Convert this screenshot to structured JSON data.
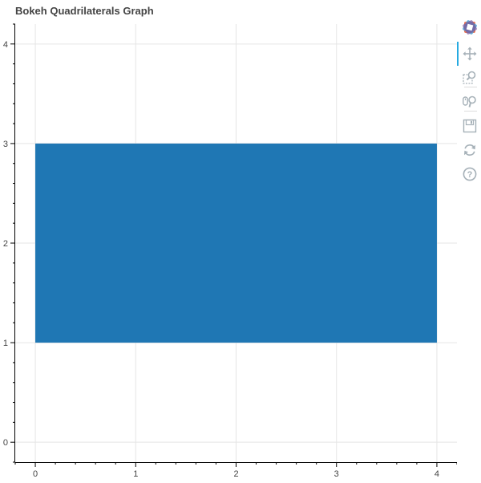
{
  "title": "Bokeh Quadrilaterals Graph",
  "colors": {
    "quad_fill": "#1f77b4",
    "grid": "#e5e5e5",
    "axis": "#000000",
    "tick_label": "#444444",
    "toolbar_icon": "#a6b1b8"
  },
  "toolbar": {
    "logo_icon": "bokeh-logo-icon",
    "tools": [
      {
        "name": "pan-tool",
        "icon": "pan-icon",
        "active": true
      },
      {
        "name": "box-zoom-tool",
        "icon": "box-zoom-icon",
        "active": false
      },
      {
        "name": "wheel-zoom-tool",
        "icon": "wheel-zoom-icon",
        "active": false
      },
      {
        "name": "save-tool",
        "icon": "save-icon",
        "active": false
      },
      {
        "name": "reset-tool",
        "icon": "reset-icon",
        "active": false
      },
      {
        "name": "help-tool",
        "icon": "help-icon",
        "active": false
      }
    ]
  },
  "chart_data": {
    "type": "quad",
    "title": "Bokeh Quadrilaterals Graph",
    "quads": [
      {
        "left": 0,
        "right": 4,
        "bottom": 1,
        "top": 3,
        "color": "#1f77b4"
      }
    ],
    "xlim": [
      -0.2,
      4.2
    ],
    "ylim": [
      -0.2,
      4.2
    ],
    "xticks": [
      0,
      1,
      2,
      3,
      4
    ],
    "yticks": [
      0,
      1,
      2,
      3,
      4
    ],
    "xtick_labels": [
      "0",
      "1",
      "2",
      "3",
      "4"
    ],
    "ytick_labels": [
      "0",
      "1",
      "2",
      "3",
      "4"
    ],
    "minor_ticks_per_major": 5,
    "grid": true,
    "xlabel": "",
    "ylabel": ""
  }
}
